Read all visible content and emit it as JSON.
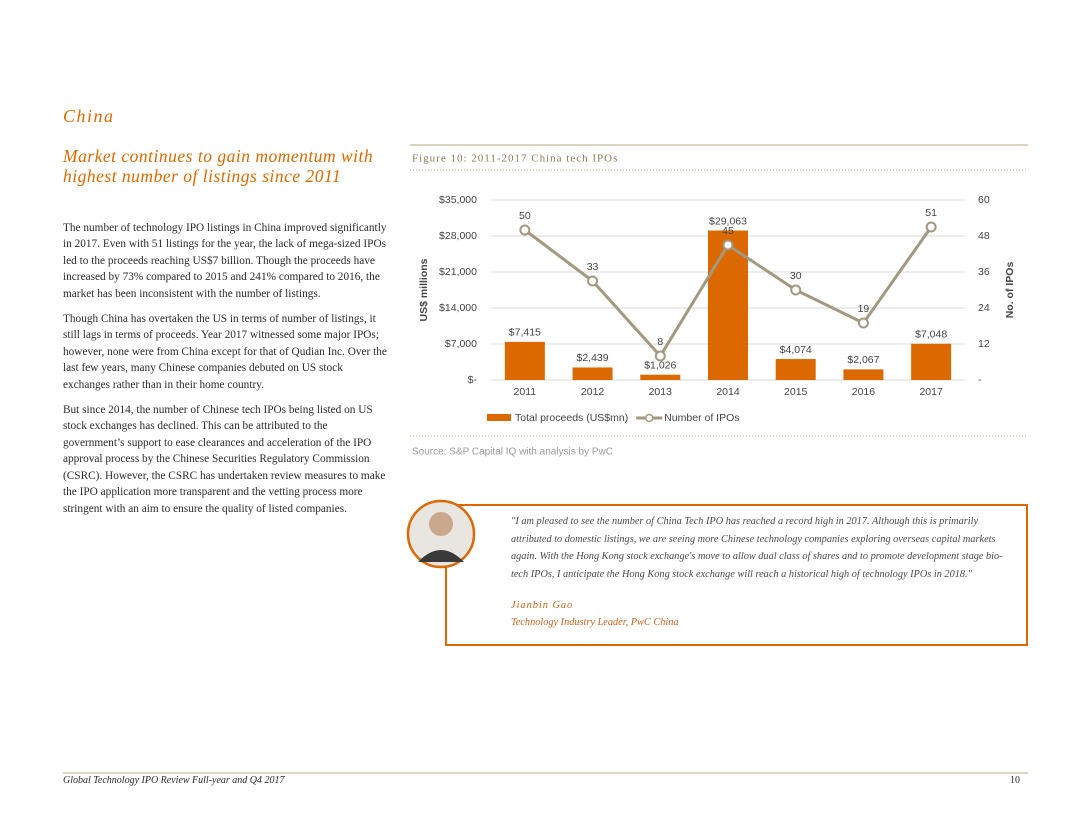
{
  "section": "China",
  "headline": "Market continues to gain momentum with highest number of listings since 2011",
  "paragraphs": [
    "The number of technology IPO listings in China improved significantly in 2017. Even with 51 listings for the year, the lack of mega-sized IPOs led to the proceeds reaching US$7 billion. Though the proceeds have increased by 73% compared to 2015 and 241% compared to 2016, the market has been inconsistent with the number of listings.",
    "Though China has overtaken the US in terms of number of listings, it still lags in terms of proceeds. Year 2017 witnessed some major IPOs; however, none were from China except for that of Qudian Inc. Over the last few years, many Chinese companies debuted on US stock exchanges rather than in their home country.",
    "But since 2014, the number of Chinese tech IPOs being listed on US stock exchanges has declined. This can be attributed to the government’s support to ease clearances and acceleration of the IPO approval process by the Chinese Securities Regulatory Commission (CSRC). However, the CSRC has undertaken review measures to make the IPO application more transparent and the vetting process more stringent with an aim to ensure the quality of listed companies."
  ],
  "chart_data": {
    "type": "bar",
    "title": "Figure 10: 2011-2017 China tech IPOs",
    "categories": [
      "2011",
      "2012",
      "2013",
      "2014",
      "2015",
      "2016",
      "2017"
    ],
    "series": [
      {
        "name": "Total proceeds (US$mn)",
        "type": "bar",
        "color": "#dc6900",
        "values": [
          7415,
          2439,
          1026,
          29063,
          4074,
          2067,
          7048
        ],
        "value_labels": [
          "$7,415",
          "$2,439",
          "$1,026",
          "$29,063",
          "$4,074",
          "$2,067",
          "$7,048"
        ]
      },
      {
        "name": "Number of IPOs",
        "type": "line",
        "axis": "y2",
        "color": "#a39880",
        "values": [
          50,
          33,
          8,
          45,
          30,
          19,
          51
        ]
      }
    ],
    "ylabel": "US$ millions",
    "y2label": "No. of IPOs",
    "ylim": [
      0,
      35000
    ],
    "yticks": [
      {
        "value": 0,
        "label": "$-"
      },
      {
        "value": 7000,
        "label": "$7,000"
      },
      {
        "value": 14000,
        "label": "$14,000"
      },
      {
        "value": 21000,
        "label": "$21,000"
      },
      {
        "value": 28000,
        "label": "$28,000"
      },
      {
        "value": 35000,
        "label": "$35,000"
      }
    ],
    "y2lim": [
      0,
      60
    ],
    "y2ticks": [
      {
        "value": 0,
        "label": "-"
      },
      12,
      24,
      36,
      48,
      60
    ],
    "grid": true,
    "source": "Source: S&P Capital IQ with analysis by PwC"
  },
  "quote": {
    "text": "\"I am pleased to see the number of China Tech IPO has reached a record high in 2017. Although this is primarily attributed to domestic listings, we are seeing more Chinese technology companies exploring overseas capital markets again. With the Hong Kong stock exchange's move to allow dual class of shares and to promote development stage bio-tech IPOs, I anticipate the Hong Kong stock exchange will reach a historical high of technology IPOs in 2018.\"",
    "name": "Jianbin Gao",
    "role": "Technology Industry Leader, PwC China"
  },
  "footer": {
    "title": "Global Technology IPO Review Full-year and Q4 2017",
    "page": "10"
  }
}
